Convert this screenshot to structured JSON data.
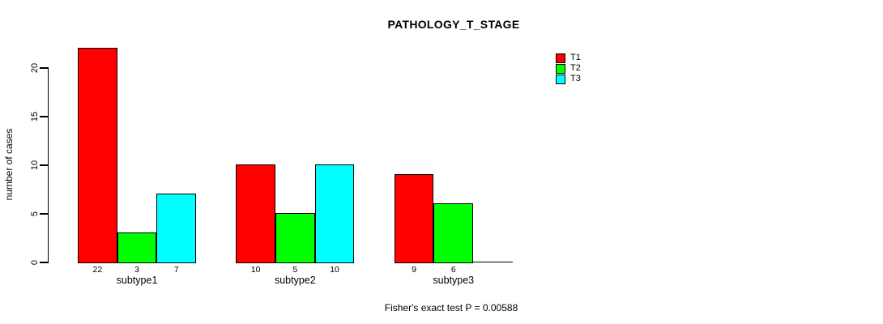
{
  "chart_data": {
    "type": "bar",
    "title": "PATHOLOGY_T_STAGE",
    "ylabel": "number of cases",
    "xlabel": "",
    "categories": [
      "subtype1",
      "subtype2",
      "subtype3"
    ],
    "series": [
      {
        "name": "T1",
        "color": "#FF0000",
        "values": [
          22,
          10,
          9
        ]
      },
      {
        "name": "T2",
        "color": "#00FF00",
        "values": [
          3,
          5,
          6
        ]
      },
      {
        "name": "T3",
        "color": "#00FFFF",
        "values": [
          7,
          10,
          0
        ]
      }
    ],
    "value_labels": [
      [
        "22",
        "3",
        "7"
      ],
      [
        "10",
        "5",
        "10"
      ],
      [
        "9",
        "6",
        ""
      ]
    ],
    "yticks": [
      "0",
      "5",
      "10",
      "15",
      "20"
    ],
    "ytick_values": [
      0,
      5,
      10,
      15,
      20
    ],
    "ylim": [
      0,
      22
    ],
    "grid": false,
    "legend_position": "right",
    "annotation": "Fisher's exact test P = 0.00588"
  },
  "colors": {
    "background": "#FFFFFF",
    "axis": "#000000",
    "bar_border": "#000000",
    "text": "#000000"
  }
}
